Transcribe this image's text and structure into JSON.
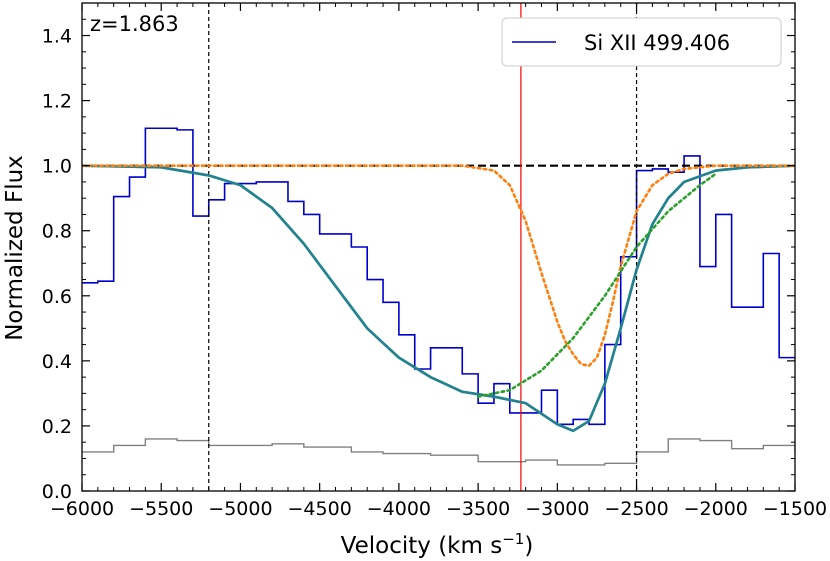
{
  "chart_data": {
    "type": "line",
    "annotation": "z=1.863",
    "xlabel_main": "Velocity (km s",
    "xlabel_sup": "−1",
    "xlabel_close": ")",
    "ylabel": "Normalized Flux",
    "xlim": [
      -6000,
      -1500
    ],
    "ylim": [
      0.0,
      1.5
    ],
    "xticks": [
      -6000,
      -5500,
      -5000,
      -4500,
      -4000,
      -3500,
      -3000,
      -2500,
      -2000,
      -1500
    ],
    "xtick_labels": [
      "−6000",
      "−5500",
      "−5000",
      "−4500",
      "−4000",
      "−3500",
      "−3000",
      "−2500",
      "−2000",
      "−1500"
    ],
    "yticks": [
      0.0,
      0.2,
      0.4,
      0.6,
      0.8,
      1.0,
      1.2,
      1.4
    ],
    "ytick_labels": [
      "0.0",
      "0.2",
      "0.4",
      "0.6",
      "0.8",
      "1.0",
      "1.2",
      "1.4"
    ],
    "legend": {
      "placement": "top-right",
      "entries": [
        {
          "label": "Si XII 499.406",
          "color": "#0000cc"
        }
      ]
    },
    "continuum_level": 1.0,
    "vlines_dashed": [
      -5200,
      -2500
    ],
    "vline_red": -3230,
    "colors": {
      "data": "#0000cc",
      "error": "#808080",
      "model": "#1f77b4",
      "model_overlay": "#2ca02c",
      "component_1": "#ff7f0e",
      "component_2": "#2ca02c",
      "continuum": "#000000",
      "center_line": "#ff0000"
    },
    "series": [
      {
        "name": "Si XII 499.406",
        "style": "steps",
        "x": [
          -6000,
          -5900,
          -5800,
          -5700,
          -5600,
          -5400,
          -5300,
          -5200,
          -5100,
          -4900,
          -4700,
          -4600,
          -4500,
          -4400,
          -4300,
          -4200,
          -4100,
          -4000,
          -3900,
          -3800,
          -3700,
          -3600,
          -3500,
          -3400,
          -3300,
          -3200,
          -3100,
          -3000,
          -2900,
          -2800,
          -2700,
          -2600,
          -2500,
          -2400,
          -2300,
          -2200,
          -2100,
          -2000,
          -1900,
          -1800,
          -1700,
          -1600,
          -1500
        ],
        "y": [
          0.64,
          0.645,
          0.905,
          0.965,
          1.115,
          1.11,
          0.845,
          0.895,
          0.945,
          0.95,
          0.89,
          0.85,
          0.79,
          0.79,
          0.75,
          0.65,
          0.58,
          0.48,
          0.375,
          0.44,
          0.44,
          0.36,
          0.27,
          0.33,
          0.24,
          0.24,
          0.31,
          0.205,
          0.22,
          0.205,
          0.45,
          0.72,
          0.985,
          0.99,
          0.98,
          1.03,
          0.69,
          0.85,
          0.565,
          0.565,
          0.73,
          0.41,
          0.41
        ]
      },
      {
        "name": "",
        "style": "steps",
        "x": [
          -6000,
          -5800,
          -5600,
          -5400,
          -5200,
          -4800,
          -4600,
          -4300,
          -4100,
          -3800,
          -3500,
          -3200,
          -3000,
          -2700,
          -2500,
          -2300,
          -2100,
          -1900,
          -1700,
          -1500
        ],
        "y": [
          0.12,
          0.14,
          0.16,
          0.155,
          0.14,
          0.145,
          0.135,
          0.12,
          0.115,
          0.11,
          0.09,
          0.095,
          0.08,
          0.085,
          0.12,
          0.16,
          0.155,
          0.13,
          0.14,
          0.12
        ]
      },
      {
        "name": "",
        "style": "line",
        "x": [
          -6000,
          -5500,
          -5200,
          -5000,
          -4800,
          -4600,
          -4400,
          -4200,
          -4000,
          -3800,
          -3600,
          -3400,
          -3200,
          -3000,
          -2900,
          -2800,
          -2700,
          -2600,
          -2500,
          -2400,
          -2300,
          -2200,
          -2000,
          -1800,
          -1500
        ],
        "y": [
          1.0,
          0.995,
          0.97,
          0.94,
          0.87,
          0.76,
          0.63,
          0.5,
          0.41,
          0.35,
          0.305,
          0.29,
          0.27,
          0.205,
          0.185,
          0.215,
          0.33,
          0.5,
          0.68,
          0.82,
          0.9,
          0.95,
          0.985,
          0.995,
          1.0
        ]
      },
      {
        "name": "",
        "style": "dotted",
        "x": [
          -6000,
          -3600,
          -3400,
          -3300,
          -3200,
          -3100,
          -3000,
          -2950,
          -2900,
          -2850,
          -2800,
          -2750,
          -2700,
          -2650,
          -2600,
          -2500,
          -2400,
          -2300,
          -2200,
          -2000,
          -1500
        ],
        "y": [
          1.0,
          1.0,
          0.985,
          0.94,
          0.83,
          0.67,
          0.52,
          0.46,
          0.42,
          0.39,
          0.385,
          0.41,
          0.48,
          0.58,
          0.69,
          0.86,
          0.94,
          0.975,
          0.99,
          1.0,
          1.0
        ]
      },
      {
        "name": "",
        "style": "dotted",
        "x": [
          -3500,
          -3300,
          -3100,
          -2900,
          -2700,
          -2500,
          -2300,
          -2100,
          -2000
        ],
        "y": [
          0.29,
          0.31,
          0.37,
          0.47,
          0.6,
          0.75,
          0.86,
          0.94,
          0.975
        ]
      }
    ]
  }
}
